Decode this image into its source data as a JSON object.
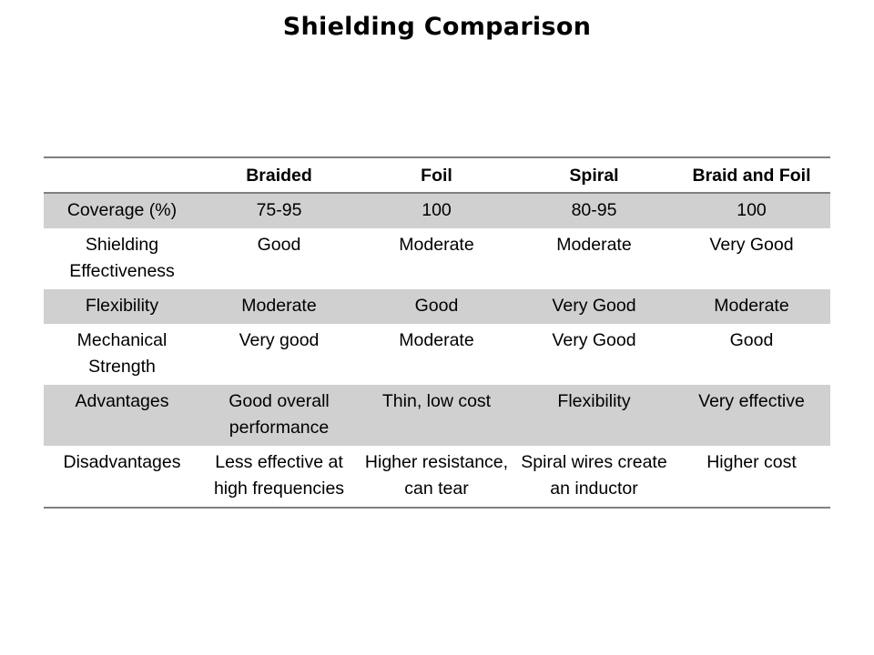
{
  "title": "Shielding Comparison",
  "table": {
    "headers": [
      "",
      "Braided",
      "Foil",
      "Spiral",
      "Braid and Foil"
    ],
    "rows": [
      {
        "label": "Coverage (%)",
        "cells": [
          "75-95",
          "100",
          "80-95",
          "100"
        ]
      },
      {
        "label": "Shielding Effectiveness",
        "cells": [
          "Good",
          "Moderate",
          "Moderate",
          "Very Good"
        ]
      },
      {
        "label": "Flexibility",
        "cells": [
          "Moderate",
          "Good",
          "Very Good",
          "Moderate"
        ]
      },
      {
        "label": "Mechanical Strength",
        "cells": [
          "Very good",
          "Moderate",
          "Very Good",
          "Good"
        ]
      },
      {
        "label": "Advantages",
        "cells": [
          "Good overall performance",
          "Thin, low cost",
          "Flexibility",
          "Very effective"
        ]
      },
      {
        "label": "Disadvantages",
        "cells": [
          "Less effective at high frequencies",
          "Higher resistance, can tear",
          "Spiral wires create an inductor",
          "Higher cost"
        ]
      }
    ]
  },
  "colors": {
    "shade": "#d0d0d0",
    "rule": "#808080"
  }
}
